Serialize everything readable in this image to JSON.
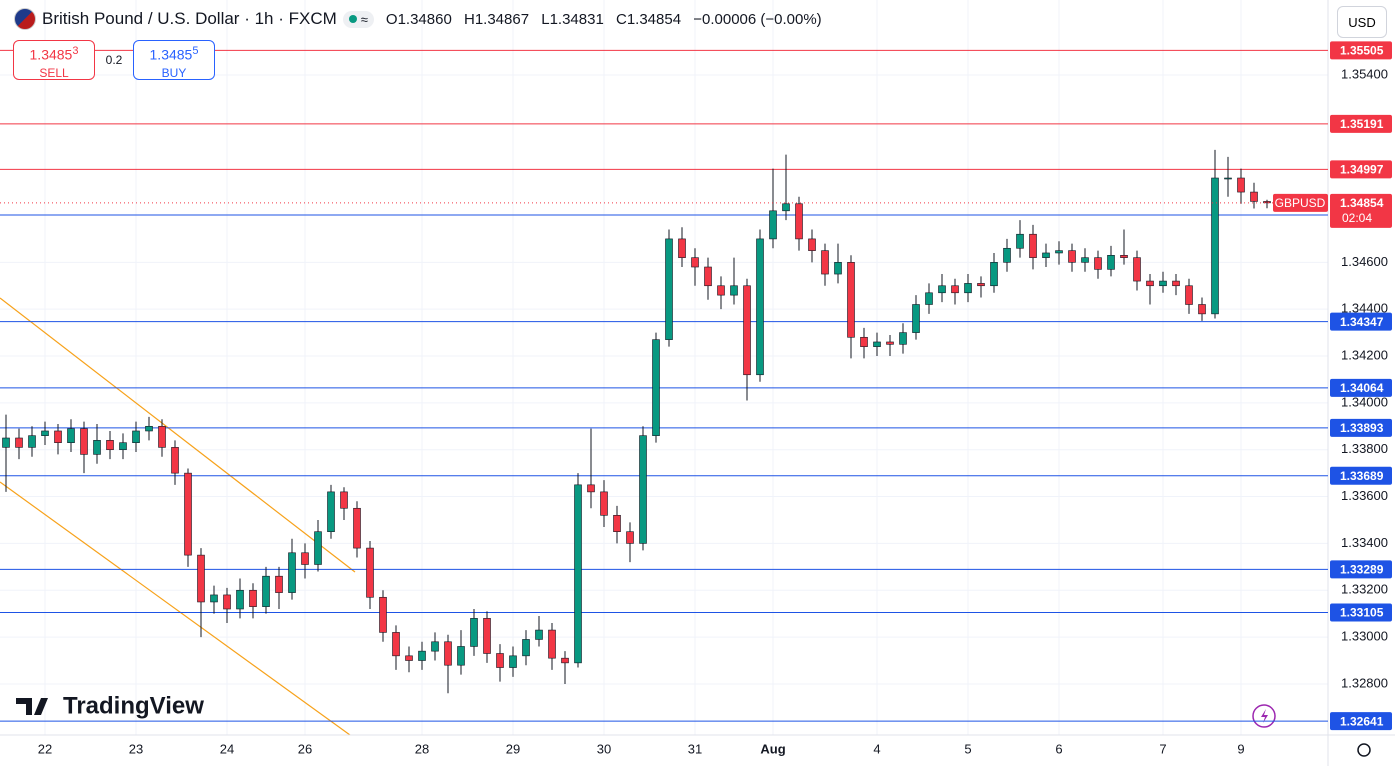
{
  "chart_data": {
    "type": "candlestick",
    "title": "British Pound / U.S. Dollar · 1h · FXCM",
    "ohlc_header": {
      "o_label": "O",
      "o": "1.34860",
      "h_label": "H",
      "h": "1.34867",
      "l_label": "L",
      "l": "1.34831",
      "c_label": "C",
      "c": "1.34854",
      "change": "−0.00006 (−0.00%)"
    },
    "trade": {
      "sell_price": "1.3485",
      "sell_pip": "3",
      "sell_label": "SELL",
      "spread": "0.2",
      "buy_price": "1.3485",
      "buy_pip": "5",
      "buy_label": "BUY"
    },
    "currency": "USD",
    "brand": "TradingView",
    "up_color": "#089981",
    "down_color": "#f23645",
    "categories": [
      null,
      null,
      null,
      "22",
      null,
      null,
      null,
      null,
      null,
      null,
      "23",
      null,
      null,
      null,
      null,
      null,
      null,
      "24",
      null,
      null,
      null,
      null,
      null,
      "26",
      null,
      null,
      null,
      null,
      null,
      null,
      null,
      null,
      "28",
      null,
      null,
      null,
      null,
      null,
      null,
      "29",
      null,
      null,
      null,
      null,
      null,
      null,
      "30",
      null,
      null,
      null,
      null,
      null,
      null,
      "31",
      null,
      null,
      null,
      null,
      null,
      "Aug",
      null,
      null,
      null,
      null,
      null,
      null,
      null,
      "4",
      null,
      null,
      null,
      null,
      null,
      null,
      "5",
      null,
      null,
      null,
      null,
      null,
      null,
      "6",
      null,
      null,
      null,
      null,
      null,
      null,
      null,
      "7",
      null,
      null,
      null,
      null,
      null,
      "9",
      null,
      null
    ],
    "open": [
      1.3381,
      1.3385,
      1.3381,
      1.3386,
      1.3388,
      1.3383,
      1.3389,
      1.3378,
      1.3384,
      1.338,
      1.3383,
      1.3388,
      1.339,
      1.3381,
      1.337,
      1.3335,
      1.3315,
      1.3318,
      1.3312,
      1.332,
      1.3313,
      1.3326,
      1.3319,
      1.3336,
      1.3331,
      1.3345,
      1.3362,
      1.3355,
      1.3338,
      1.3317,
      1.3302,
      1.3292,
      1.329,
      1.3294,
      1.3298,
      1.3288,
      1.3296,
      1.3308,
      1.3293,
      1.3287,
      1.3292,
      1.3299,
      1.3303,
      1.3291,
      1.3289,
      1.3365,
      1.3362,
      1.3352,
      1.3345,
      1.334,
      1.3386,
      1.3427,
      1.347,
      1.3462,
      1.3458,
      1.345,
      1.3446,
      1.345,
      1.3412,
      1.347,
      1.3482,
      1.3485,
      1.347,
      1.3465,
      1.3455,
      1.346,
      1.3428,
      1.3424,
      1.3426,
      1.3425,
      1.343,
      1.3442,
      1.3447,
      1.345,
      1.3447,
      1.3451,
      1.345,
      1.346,
      1.3466,
      1.3472,
      1.3462,
      1.3464,
      1.3465,
      1.346,
      1.3462,
      1.3457,
      1.3463,
      1.3462,
      1.3452,
      1.345,
      1.3452,
      1.345,
      1.3442,
      1.3438,
      1.3496,
      1.3496,
      1.349,
      1.3486
    ],
    "high": [
      1.3395,
      1.3389,
      1.339,
      1.3392,
      1.3391,
      1.3393,
      1.3392,
      1.3391,
      1.3388,
      1.3387,
      1.3392,
      1.3394,
      1.3393,
      1.3384,
      1.3372,
      1.3338,
      1.3322,
      1.3321,
      1.3325,
      1.3323,
      1.333,
      1.333,
      1.3342,
      1.334,
      1.335,
      1.3365,
      1.3364,
      1.3358,
      1.3341,
      1.332,
      1.3305,
      1.3296,
      1.3298,
      1.3302,
      1.3301,
      1.3303,
      1.3312,
      1.3311,
      1.3297,
      1.3296,
      1.3303,
      1.3309,
      1.3306,
      1.3294,
      1.337,
      1.3389,
      1.3367,
      1.3356,
      1.3349,
      1.339,
      1.343,
      1.3474,
      1.3475,
      1.3466,
      1.3462,
      1.3454,
      1.3462,
      1.3453,
      1.3474,
      1.35,
      1.3506,
      1.3488,
      1.3474,
      1.3468,
      1.3468,
      1.3463,
      1.3432,
      1.343,
      1.3429,
      1.3434,
      1.3446,
      1.3451,
      1.3455,
      1.3453,
      1.3455,
      1.3454,
      1.3464,
      1.347,
      1.3478,
      1.3476,
      1.3468,
      1.3469,
      1.3468,
      1.3466,
      1.3465,
      1.3467,
      1.3474,
      1.3465,
      1.3455,
      1.3456,
      1.3455,
      1.3453,
      1.3445,
      1.3508,
      1.3505,
      1.35,
      1.3494,
      1.34867
    ],
    "low": [
      1.3362,
      1.3376,
      1.3377,
      1.3382,
      1.3378,
      1.3379,
      1.337,
      1.3374,
      1.3376,
      1.3376,
      1.3379,
      1.3384,
      1.3377,
      1.3365,
      1.333,
      1.33,
      1.331,
      1.3306,
      1.3308,
      1.3308,
      1.331,
      1.3312,
      1.3316,
      1.3325,
      1.3328,
      1.3342,
      1.335,
      1.3334,
      1.3312,
      1.3298,
      1.3286,
      1.3285,
      1.3286,
      1.329,
      1.3276,
      1.3284,
      1.3292,
      1.3289,
      1.3281,
      1.3283,
      1.3288,
      1.3296,
      1.3286,
      1.328,
      1.3287,
      1.3355,
      1.3347,
      1.334,
      1.3332,
      1.3337,
      1.3383,
      1.3424,
      1.3458,
      1.345,
      1.3444,
      1.344,
      1.3442,
      1.3401,
      1.3409,
      1.3466,
      1.3478,
      1.3465,
      1.346,
      1.345,
      1.3451,
      1.3419,
      1.3419,
      1.342,
      1.342,
      1.3421,
      1.3427,
      1.3438,
      1.3443,
      1.3442,
      1.3443,
      1.3445,
      1.3447,
      1.3456,
      1.3462,
      1.3457,
      1.3458,
      1.3459,
      1.3456,
      1.3456,
      1.3453,
      1.3454,
      1.3459,
      1.3448,
      1.3442,
      1.3447,
      1.3446,
      1.3438,
      1.3435,
      1.3436,
      1.3488,
      1.3485,
      1.3483,
      1.34831
    ],
    "close": [
      1.3385,
      1.3381,
      1.3386,
      1.3388,
      1.3383,
      1.3389,
      1.3378,
      1.3384,
      1.338,
      1.3383,
      1.3388,
      1.339,
      1.3381,
      1.337,
      1.3335,
      1.3315,
      1.3318,
      1.3312,
      1.332,
      1.3313,
      1.3326,
      1.3319,
      1.3336,
      1.3331,
      1.3345,
      1.3362,
      1.3355,
      1.3338,
      1.3317,
      1.3302,
      1.3292,
      1.329,
      1.3294,
      1.3298,
      1.3288,
      1.3296,
      1.3308,
      1.3293,
      1.3287,
      1.3292,
      1.3299,
      1.3303,
      1.3291,
      1.3289,
      1.3365,
      1.3362,
      1.3352,
      1.3345,
      1.334,
      1.3386,
      1.3427,
      1.347,
      1.3462,
      1.3458,
      1.345,
      1.3446,
      1.345,
      1.3412,
      1.347,
      1.3482,
      1.3485,
      1.347,
      1.3465,
      1.3455,
      1.346,
      1.3428,
      1.3424,
      1.3426,
      1.3425,
      1.343,
      1.3442,
      1.3447,
      1.345,
      1.3447,
      1.3451,
      1.345,
      1.346,
      1.3466,
      1.3472,
      1.3462,
      1.3464,
      1.3465,
      1.346,
      1.3462,
      1.3457,
      1.3463,
      1.3462,
      1.3452,
      1.345,
      1.3452,
      1.345,
      1.3442,
      1.3438,
      1.3496,
      1.3496,
      1.349,
      1.3486,
      1.34854
    ],
    "ylim": [
      1.32582,
      1.3572
    ],
    "yticks": [
      {
        "value": 1.354,
        "label": "1.35400"
      },
      {
        "value": 1.346,
        "label": "1.34600"
      },
      {
        "value": 1.344,
        "label": "1.34400"
      },
      {
        "value": 1.342,
        "label": "1.34200"
      },
      {
        "value": 1.34,
        "label": "1.34000"
      },
      {
        "value": 1.338,
        "label": "1.33800"
      },
      {
        "value": 1.336,
        "label": "1.33600"
      },
      {
        "value": 1.334,
        "label": "1.33400"
      },
      {
        "value": 1.332,
        "label": "1.33200"
      },
      {
        "value": 1.33,
        "label": "1.33000"
      },
      {
        "value": 1.328,
        "label": "1.32800"
      }
    ],
    "levels": [
      {
        "value": 1.35505,
        "color": "#f23645"
      },
      {
        "value": 1.35191,
        "color": "#f23645"
      },
      {
        "value": 1.34997,
        "color": "#f23645"
      },
      {
        "value": 1.34802,
        "color": "#1e53e5"
      },
      {
        "value": 1.34347,
        "color": "#1e53e5"
      },
      {
        "value": 1.34064,
        "color": "#1e53e5"
      },
      {
        "value": 1.33893,
        "color": "#1e53e5"
      },
      {
        "value": 1.33689,
        "color": "#1e53e5"
      },
      {
        "value": 1.33289,
        "color": "#1e53e5"
      },
      {
        "value": 1.33105,
        "color": "#1e53e5"
      },
      {
        "value": 1.32641,
        "color": "#1e53e5"
      }
    ],
    "last_price": 1.34854,
    "last_symbol": "GBPUSD",
    "countdown": "02:04",
    "grid": true
  }
}
